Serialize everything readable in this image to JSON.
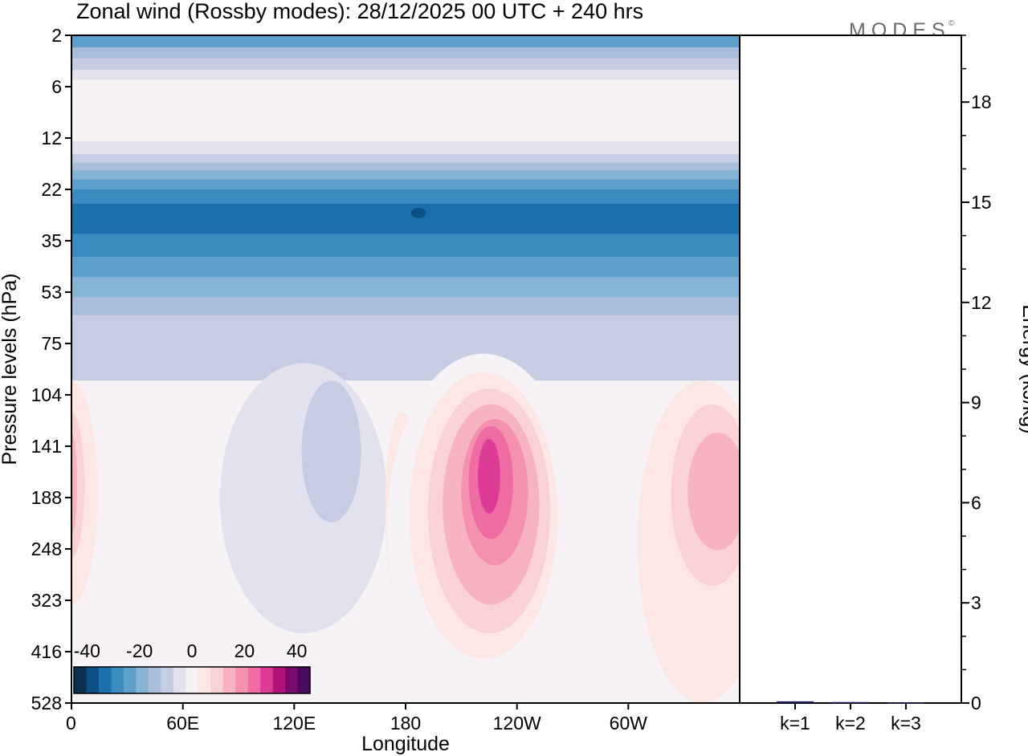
{
  "logo": {
    "text": "MODES",
    "mark": "©"
  },
  "chart_data": [
    {
      "type": "heatmap",
      "title": "Zonal wind (Rossby modes):  28/12/2025  00 UTC  + 240 hrs",
      "xlabel": "Longitude",
      "ylabel": "Pressure levels (hPa)",
      "x_ticks": [
        "0",
        "60E",
        "120E",
        "180",
        "120W",
        "60W"
      ],
      "x_tick_values": [
        0,
        60,
        120,
        180,
        240,
        300
      ],
      "xlim": [
        0,
        360
      ],
      "y_ticks": [
        "2",
        "6",
        "12",
        "22",
        "35",
        "53",
        "75",
        "104",
        "141",
        "188",
        "248",
        "323",
        "416",
        "528"
      ],
      "colorbar": {
        "labels": [
          "-40",
          "-20",
          "0",
          "20",
          "40"
        ],
        "label_values": [
          -40,
          -20,
          0,
          20,
          40
        ],
        "range": [
          -45,
          45
        ],
        "levels": [
          -45,
          -40,
          -35,
          -30,
          -25,
          -20,
          -15,
          -10,
          -5,
          0,
          5,
          10,
          15,
          20,
          25,
          30,
          35,
          40,
          45
        ],
        "colors": [
          "#08304f",
          "#0b4f84",
          "#1a70aa",
          "#3a8bbf",
          "#5f9fcb",
          "#87b3d4",
          "#a9bedb",
          "#c6cde2",
          "#e1e2ee",
          "#f6f2f6",
          "#fde7e5",
          "#fbd2d3",
          "#f7b4c0",
          "#f491ae",
          "#ef6ba4",
          "#dd3c96",
          "#b3127b",
          "#7a0a6e",
          "#4a0a5e"
        ]
      },
      "bands": [
        {
          "p_top": 2,
          "p_bot": 2.6,
          "value": -22
        },
        {
          "p_top": 2.6,
          "p_bot": 3.3,
          "value": -14
        },
        {
          "p_top": 3.3,
          "p_bot": 4.2,
          "value": -8
        },
        {
          "p_top": 4.2,
          "p_bot": 5.2,
          "value": -3
        },
        {
          "p_top": 5.2,
          "p_bot": 12.5,
          "value": 2
        },
        {
          "p_top": 12.5,
          "p_bot": 14.5,
          "value": -3
        },
        {
          "p_top": 14.5,
          "p_bot": 16,
          "value": -8
        },
        {
          "p_top": 16,
          "p_bot": 17.5,
          "value": -12
        },
        {
          "p_top": 17.5,
          "p_bot": 19.5,
          "value": -17
        },
        {
          "p_top": 19.5,
          "p_bot": 22,
          "value": -22
        },
        {
          "p_top": 22,
          "p_bot": 25,
          "value": -27
        },
        {
          "p_top": 25,
          "p_bot": 33,
          "value": -32
        },
        {
          "p_top": 33,
          "p_bot": 40,
          "value": -27
        },
        {
          "p_top": 40,
          "p_bot": 47,
          "value": -22
        },
        {
          "p_top": 47,
          "p_bot": 55,
          "value": -17
        },
        {
          "p_top": 55,
          "p_bot": 62,
          "value": -12
        },
        {
          "p_top": 62,
          "p_bot": 95,
          "value": -8
        },
        {
          "p_top": 95,
          "p_bot": 528,
          "value": 1
        }
      ],
      "blobs": [
        {
          "lon": 0,
          "p": 190,
          "width_deg": 28,
          "p_top": 95,
          "p_bot": 330,
          "value": 8
        },
        {
          "lon": 0,
          "p": 190,
          "width_deg": 14,
          "p_top": 115,
          "p_bot": 260,
          "value": 13
        },
        {
          "lon": 0,
          "p": 190,
          "width_deg": 6,
          "p_top": 130,
          "p_bot": 230,
          "value": 18
        },
        {
          "lon": 70,
          "p": 140,
          "width_deg": 40,
          "p_top": 100,
          "p_bot": 290,
          "value": 4
        },
        {
          "lon": 125,
          "p": 150,
          "width_deg": 90,
          "p_top": 85,
          "p_bot": 380,
          "value": -4
        },
        {
          "lon": 140,
          "p": 140,
          "width_deg": 32,
          "p_top": 95,
          "p_bot": 215,
          "value": -9
        },
        {
          "lon": 178,
          "p": 190,
          "width_deg": 18,
          "p_top": 115,
          "p_bot": 330,
          "value": 6
        },
        {
          "lon": 222,
          "p": 190,
          "width_deg": 104,
          "p_top": 80,
          "p_bot": 528,
          "value": 4
        },
        {
          "lon": 222,
          "p": 200,
          "width_deg": 80,
          "p_top": 90,
          "p_bot": 430,
          "value": 8
        },
        {
          "lon": 225,
          "p": 190,
          "width_deg": 66,
          "p_top": 100,
          "p_bot": 380,
          "value": 13
        },
        {
          "lon": 226,
          "p": 185,
          "width_deg": 52,
          "p_top": 110,
          "p_bot": 330,
          "value": 18
        },
        {
          "lon": 228,
          "p": 180,
          "width_deg": 36,
          "p_top": 120,
          "p_bot": 270,
          "value": 24
        },
        {
          "lon": 226,
          "p": 175,
          "width_deg": 24,
          "p_top": 125,
          "p_bot": 235,
          "value": 29
        },
        {
          "lon": 225,
          "p": 165,
          "width_deg": 12,
          "p_top": 135,
          "p_bot": 205,
          "value": 33
        },
        {
          "lon": 340,
          "p": 180,
          "width_deg": 70,
          "p_top": 95,
          "p_bot": 528,
          "value": 6
        },
        {
          "lon": 345,
          "p": 180,
          "width_deg": 44,
          "p_top": 110,
          "p_bot": 300,
          "value": 12
        },
        {
          "lon": 348,
          "p": 185,
          "width_deg": 32,
          "p_top": 130,
          "p_bot": 250,
          "value": 17
        },
        {
          "lon": 187,
          "p": 27,
          "width_deg": 8,
          "p_top": 26,
          "p_bot": 28.5,
          "value": -37
        }
      ]
    },
    {
      "type": "bar",
      "ylabel": "Energy (kJ/kg)",
      "categories": [
        "k=1",
        "k=2",
        "k=3"
      ],
      "values": [
        0.05,
        0.03,
        0.02
      ],
      "ylim": [
        0,
        20
      ],
      "y_ticks": [
        0,
        3,
        6,
        9,
        12,
        15,
        18
      ],
      "bar_color": "#1a1a5e"
    }
  ]
}
